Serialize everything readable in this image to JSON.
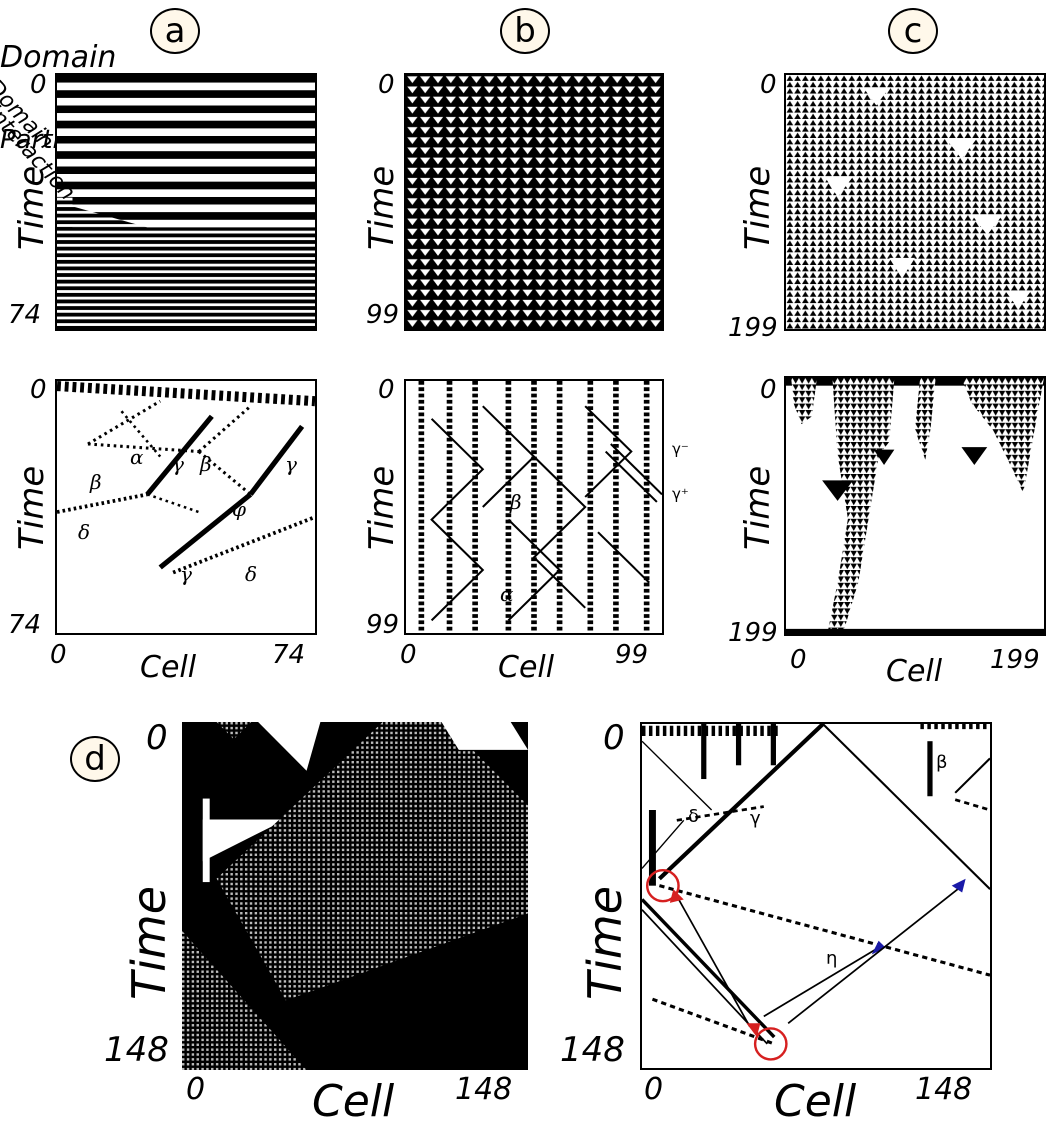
{
  "panel_labels": {
    "a": "a",
    "b": "b",
    "c": "c",
    "d": "d"
  },
  "axis": {
    "time": "Time",
    "cell": "Cell",
    "zero": "0",
    "a_max": "74",
    "b_max": "99",
    "c_max": "199",
    "d_max": "148"
  },
  "annotations_a": {
    "alpha": "α",
    "beta": "β",
    "gamma": "γ",
    "delta": "δ",
    "phi": "φ"
  },
  "annotations_b": {
    "alpha": "α",
    "beta": "β",
    "gamma_minus": "γ⁻",
    "gamma_plus": "γ⁺"
  },
  "annotations_d": {
    "beta": "β",
    "delta": "δ",
    "gamma": "γ",
    "eta": "η",
    "domain": "Domain",
    "interaction": "Interaction",
    "particles": "Particles"
  },
  "colors": {
    "ink": "#000000",
    "circle_fill": "#fff8ea",
    "highlight": "#d62020",
    "arrow_blue": "#1a1aa8"
  }
}
